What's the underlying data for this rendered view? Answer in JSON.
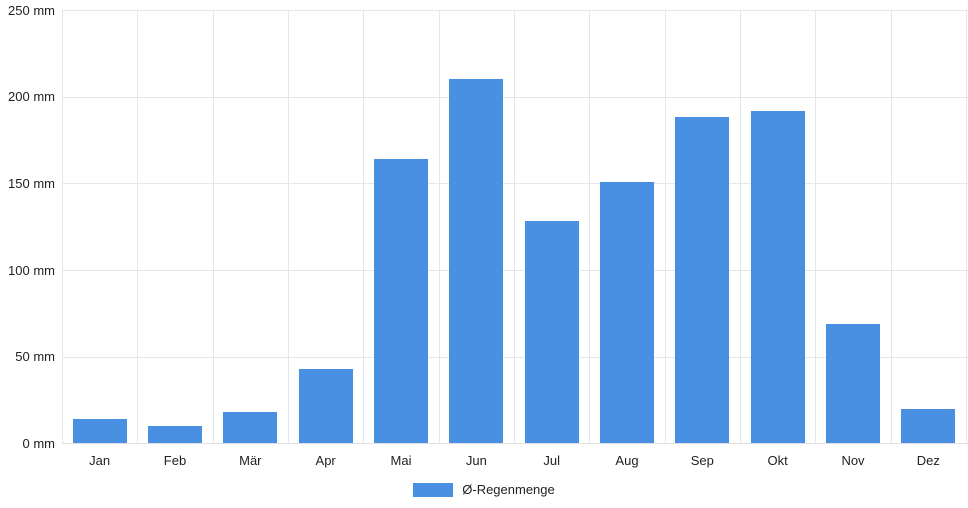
{
  "chart_data": {
    "type": "bar",
    "title": "",
    "xlabel": "",
    "ylabel": "",
    "unit": "mm",
    "categories": [
      "Jan",
      "Feb",
      "Mär",
      "Apr",
      "Mai",
      "Jun",
      "Jul",
      "Aug",
      "Sep",
      "Okt",
      "Nov",
      "Dez"
    ],
    "series": [
      {
        "name": "Ø-Regenmenge",
        "values": [
          14,
          10,
          18,
          43,
          164,
          210,
          128,
          151,
          188,
          192,
          69,
          20
        ],
        "color": "#4a90e2"
      }
    ],
    "ylim": [
      0,
      250
    ],
    "ytick_step": 50,
    "ytick_labels": [
      "0 mm",
      "50 mm",
      "100 mm",
      "150 mm",
      "200 mm",
      "250 mm"
    ],
    "grid": true,
    "grid_color": "#e6e6e6",
    "axis_text_color": "#222222",
    "legend_position": "bottom-center"
  },
  "legend": {
    "label": "Ø-Regenmenge",
    "swatch_color": "#4a90e2"
  }
}
